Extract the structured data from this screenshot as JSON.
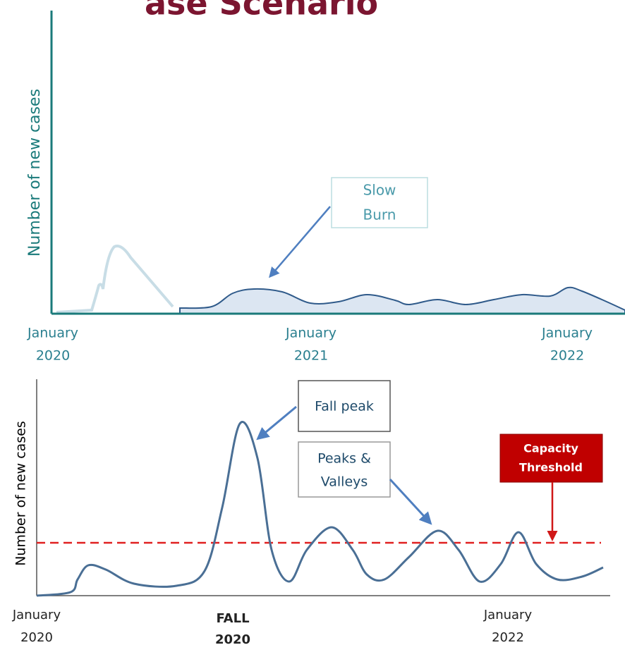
{
  "title": "ase Scenario",
  "top_chart": {
    "y_label": "Number of new cases",
    "x_labels": [
      [
        "January",
        "2020"
      ],
      [
        "January",
        "2021"
      ],
      [
        "January",
        "2022"
      ]
    ],
    "callout": [
      "Slow",
      "Burn"
    ]
  },
  "bottom_chart": {
    "y_label": "Number of new cases",
    "x_labels": [
      [
        "January",
        "2020"
      ],
      [
        "FALL",
        "2020"
      ],
      [
        "January",
        "2022"
      ]
    ],
    "callouts": {
      "fall_peak": "Fall peak",
      "peaks_valleys": [
        "Peaks &",
        "Valleys"
      ],
      "capacity": [
        "Capacity",
        "Threshold"
      ]
    }
  }
}
